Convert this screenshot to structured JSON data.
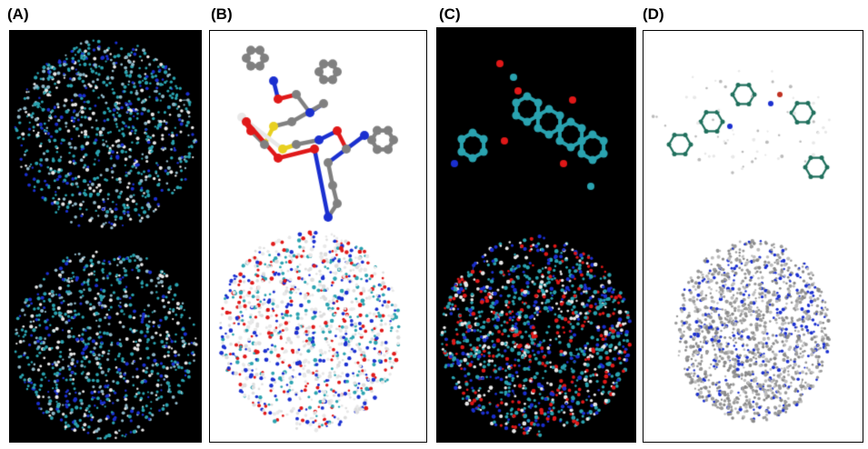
{
  "panels": [
    {
      "label": "(A)",
      "background": "#000000"
    },
    {
      "label": "(B)",
      "background": "#ffffff"
    },
    {
      "label": "(C)",
      "background": "#000000"
    },
    {
      "label": "(D)",
      "background": "#ffffff"
    }
  ],
  "colors": {
    "carbon_cyan": "#2aa3b0",
    "nitrogen": "#1a2fd0",
    "oxygen": "#e01818",
    "hydrogen": "#e8e8e8",
    "carbon_grey": "#808080",
    "carbon_green": "#1f6f5c",
    "sulfur": "#e8d020"
  }
}
